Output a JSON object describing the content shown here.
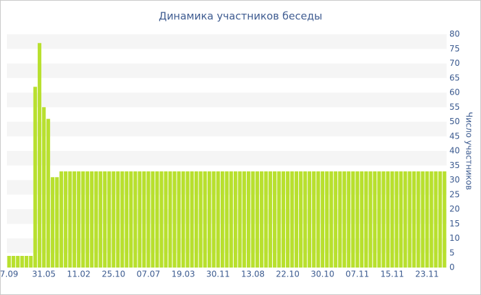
{
  "chart_data": {
    "type": "bar",
    "title": "Динамика участников беседы",
    "y_axis_label": "Число участников",
    "categories": [
      "7.09",
      null,
      null,
      null,
      null,
      null,
      null,
      null,
      "31.05",
      null,
      null,
      null,
      null,
      null,
      null,
      null,
      "11.02",
      null,
      null,
      null,
      null,
      null,
      null,
      null,
      "25.10",
      null,
      null,
      null,
      null,
      null,
      null,
      null,
      "07.07",
      null,
      null,
      null,
      null,
      null,
      null,
      null,
      "19.03",
      null,
      null,
      null,
      null,
      null,
      null,
      null,
      "30.11",
      null,
      null,
      null,
      null,
      null,
      null,
      null,
      "13.08",
      null,
      null,
      null,
      null,
      null,
      null,
      null,
      "22.10",
      null,
      null,
      null,
      null,
      null,
      null,
      null,
      "30.10",
      null,
      null,
      null,
      null,
      null,
      null,
      null,
      "07.11",
      null,
      null,
      null,
      null,
      null,
      null,
      null,
      "15.11",
      null,
      null,
      null,
      null,
      null,
      null,
      null,
      "23.11",
      null,
      null,
      null,
      null
    ],
    "values": [
      4,
      4,
      4,
      4,
      4,
      4,
      62,
      77,
      55,
      51,
      31,
      31,
      33,
      33,
      33,
      33,
      33,
      33,
      33,
      33,
      33,
      33,
      33,
      33,
      33,
      33,
      33,
      33,
      33,
      33,
      33,
      33,
      33,
      33,
      33,
      33,
      33,
      33,
      33,
      33,
      33,
      33,
      33,
      33,
      33,
      33,
      33,
      33,
      33,
      33,
      33,
      33,
      33,
      33,
      33,
      33,
      33,
      33,
      33,
      33,
      33,
      33,
      33,
      33,
      33,
      33,
      33,
      33,
      33,
      33,
      33,
      33,
      33,
      33,
      33,
      33,
      33,
      33,
      33,
      33,
      33,
      33,
      33,
      33,
      33,
      33,
      33,
      33,
      33,
      33,
      33,
      33,
      33,
      33,
      33,
      33,
      33,
      33,
      33,
      33,
      33
    ],
    "color": "#b8e02e",
    "ylim": [
      0,
      80
    ],
    "yticks": [
      0,
      5,
      10,
      15,
      20,
      25,
      30,
      35,
      40,
      45,
      50,
      55,
      60,
      65,
      70,
      75,
      80
    ],
    "grid": true,
    "y_axis_side": "right"
  }
}
